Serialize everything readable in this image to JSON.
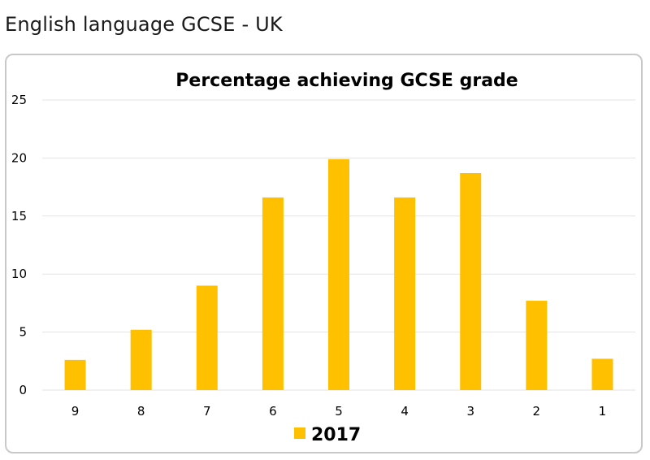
{
  "page_heading": "English language GCSE - UK",
  "colors": {
    "bar": "#FFC000",
    "grid": "#e3e3e3",
    "panel_border": "#c9c9c9"
  },
  "chart_data": {
    "type": "bar",
    "title": "Percentage achieving GCSE grade",
    "xlabel": "",
    "ylabel": "",
    "categories": [
      "9",
      "8",
      "7",
      "6",
      "5",
      "4",
      "3",
      "2",
      "1"
    ],
    "series": [
      {
        "name": "2017",
        "values": [
          2.6,
          5.2,
          9.0,
          16.6,
          19.9,
          16.6,
          18.7,
          7.7,
          2.7
        ]
      }
    ],
    "ylim": [
      0,
      25
    ],
    "yticks": [
      0,
      5,
      10,
      15,
      20,
      25
    ],
    "grid": true,
    "legend_position": "bottom"
  }
}
